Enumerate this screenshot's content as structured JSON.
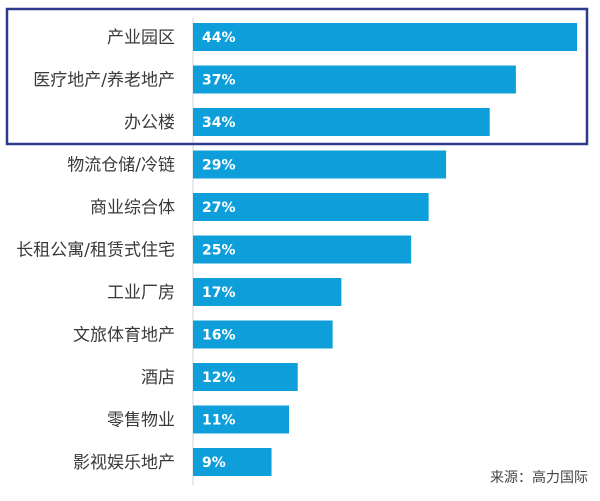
{
  "colors": {
    "bar": "#0e9fdb",
    "highlight_border": "#2e3a8c",
    "axis_line": "#cfd4da",
    "label_text": "#3a3a3a",
    "value_text": "#ffffff"
  },
  "source": "来源：高力国际",
  "chart_data": {
    "type": "bar",
    "orientation": "horizontal",
    "unit": "%",
    "categories": [
      "产业园区",
      "医疗地产/养老地产",
      "办公楼",
      "物流仓储/冷链",
      "商业综合体",
      "长租公寓/租赁式住宅",
      "工业厂房",
      "文旅体育地产",
      "酒店",
      "零售物业",
      "影视娱乐地产"
    ],
    "values": [
      44,
      37,
      34,
      29,
      27,
      25,
      17,
      16,
      12,
      11,
      9
    ],
    "value_labels": [
      "44%",
      "37%",
      "34%",
      "29%",
      "27%",
      "25%",
      "17%",
      "16%",
      "12%",
      "11%",
      "9%"
    ],
    "highlighted_categories": [
      "产业园区",
      "医疗地产/养老地产",
      "办公楼"
    ],
    "xlim": [
      0,
      44
    ],
    "grid": false,
    "legend": "none"
  }
}
